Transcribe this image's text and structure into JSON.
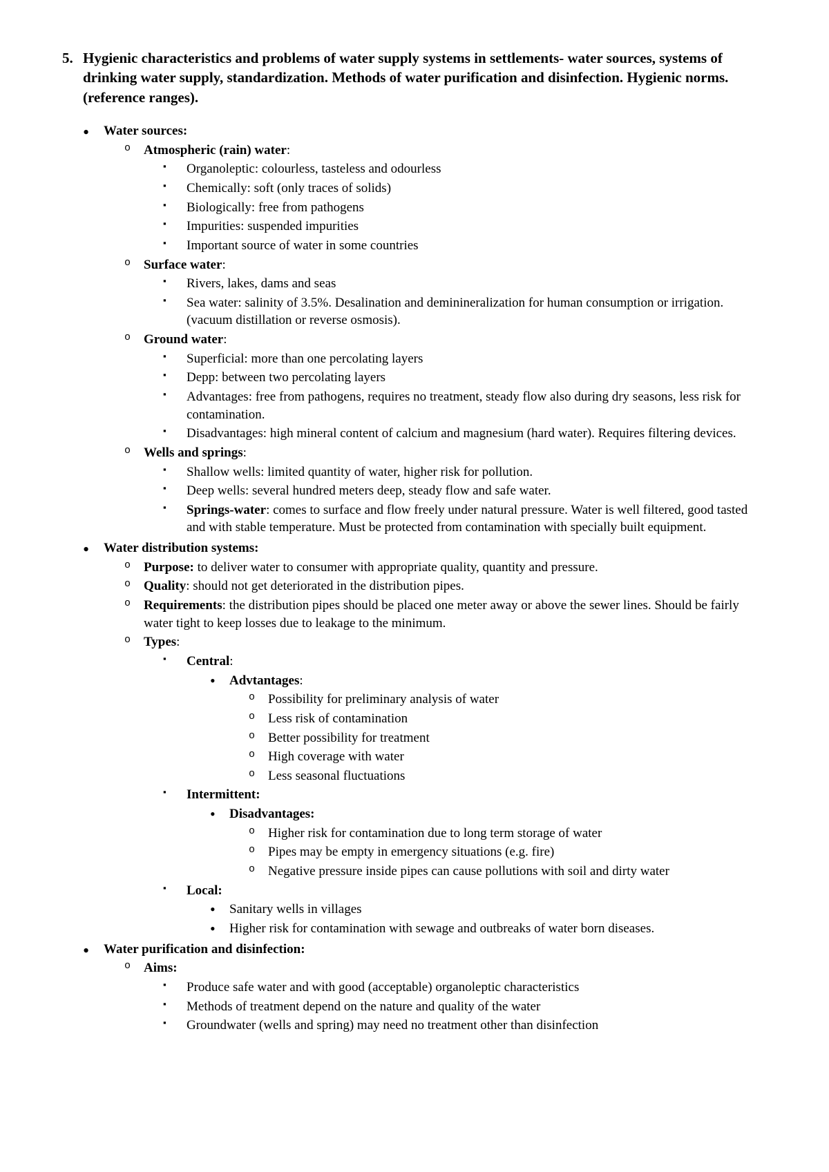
{
  "colors": {
    "background": "#ffffff",
    "text": "#000000"
  },
  "typography": {
    "font_family": "Garamond, Times New Roman, serif",
    "body_size_pt": 14,
    "heading_size_pt": 16,
    "line_height": 1.35
  },
  "heading": {
    "number": "5.",
    "text": "Hygienic characteristics and problems of water supply systems in settlements- water sources, systems of drinking water supply, standardization. Methods of water purification and disinfection. Hygienic norms. (reference ranges)."
  },
  "sections": {
    "water_sources": {
      "title": "Water sources:",
      "atmospheric": {
        "title": "Atmospheric (rain) water",
        "items": [
          "Organoleptic: colourless, tasteless and odourless",
          "Chemically: soft (only traces of solids)",
          "Biologically: free from pathogens",
          "Impurities: suspended impurities",
          "Important source of water in some countries"
        ]
      },
      "surface": {
        "title": "Surface water",
        "items": [
          "Rivers, lakes, dams and seas",
          "Sea water: salinity of 3.5%. Desalination and deminineralization for human consumption or irrigation. (vacuum distillation or reverse osmosis)."
        ]
      },
      "ground": {
        "title": "Ground water",
        "items": [
          "Superficial: more than one percolating layers",
          "Depp: between two percolating layers",
          "Advantages: free from pathogens, requires no treatment, steady flow also during dry seasons, less risk for contamination.",
          "Disadvantages: high mineral content of calcium and magnesium (hard water). Requires filtering devices."
        ]
      },
      "wells": {
        "title": "Wells and springs",
        "shallow": "Shallow wells: limited quantity of water, higher risk for pollution.",
        "deep": "Deep wells: several hundred meters deep, steady flow and safe water.",
        "springs_label": "Springs-water",
        "springs_text": ": comes to surface and flow freely under natural pressure. Water is well filtered, good tasted and with stable temperature. Must be protected from contamination with specially built equipment."
      }
    },
    "distribution": {
      "title": "Water distribution systems:",
      "purpose_label": "Purpose:",
      "purpose_text": "  to deliver water to consumer with appropriate quality, quantity and pressure.",
      "quality_label": "Quality",
      "quality_text": ": should not get deteriorated in the distribution pipes.",
      "requirements_label": "Requirements",
      "requirements_text": ": the distribution pipes should be placed one meter away or above the sewer lines. Should be fairly water tight to keep losses due to leakage to the minimum.",
      "types_label": "Types",
      "central": {
        "title": "Central",
        "adv_label": "Advtantages",
        "items": [
          "Possibility for preliminary analysis of water",
          "Less risk of contamination",
          "Better possibility for treatment",
          "High coverage with water",
          "Less seasonal fluctuations"
        ]
      },
      "intermittent": {
        "title": "Intermittent:",
        "dis_label": "Disadvantages:",
        "items": [
          "Higher risk for contamination due to long term storage of water",
          "Pipes may be empty in emergency situations (e.g. fire)",
          "Negative pressure inside pipes can cause pollutions with soil and dirty water"
        ]
      },
      "local": {
        "title": "Local:",
        "items": [
          "Sanitary wells in villages",
          "Higher risk for contamination with sewage and outbreaks of water born diseases."
        ]
      }
    },
    "purification": {
      "title": "Water purification and disinfection:",
      "aims_label": "Aims:",
      "items": [
        "Produce safe water and with good (acceptable) organoleptic characteristics",
        "Methods of treatment depend on the nature and quality of the water",
        "Groundwater (wells and spring) may need no treatment other than disinfection"
      ]
    }
  }
}
